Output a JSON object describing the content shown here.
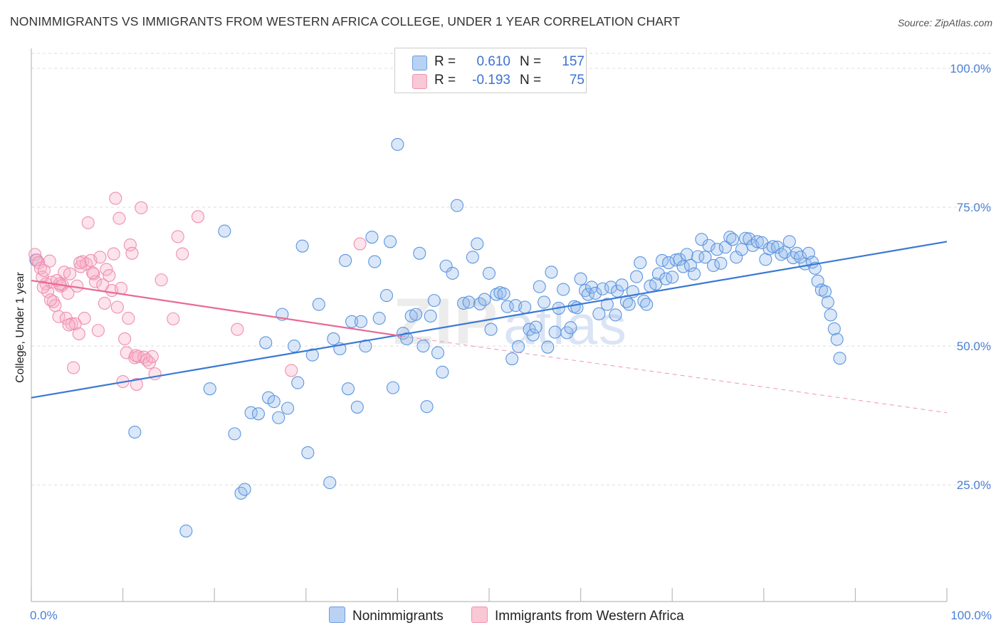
{
  "header": {
    "title": "NONIMMIGRANTS VS IMMIGRANTS FROM WESTERN AFRICA COLLEGE, UNDER 1 YEAR CORRELATION CHART",
    "source": "Source: ZipAtlas.com"
  },
  "watermark": {
    "zip": "ZIP",
    "atlas": "atlas"
  },
  "legend": {
    "r_label": "R =",
    "n_label": "N =",
    "series": [
      {
        "name": "Nonimmigrants",
        "r": "0.610",
        "n": "157",
        "color": "#5b95e0"
      },
      {
        "name": "Immigrants from Western Africa",
        "r": "-0.193",
        "n": "75",
        "color": "#ef8fae"
      }
    ]
  },
  "chart_data": {
    "type": "scatter",
    "title": "NONIMMIGRANTS VS IMMIGRANTS FROM WESTERN AFRICA COLLEGE, UNDER 1 YEAR CORRELATION CHART",
    "xlabel": "",
    "ylabel": "College, Under 1 year",
    "xlim": [
      0,
      100
    ],
    "ylim": [
      4,
      100
    ],
    "x_tick_labels": [
      "0.0%",
      "100.0%"
    ],
    "y_ticks": [
      25,
      50,
      75,
      100
    ],
    "y_tick_labels": [
      "25.0%",
      "50.0%",
      "75.0%",
      "100.0%"
    ],
    "grid": true,
    "colors": {
      "blue": "#5b95e0",
      "blue_line": "#3a78d4",
      "pink": "#ef8fae",
      "pink_line": "#e86a95"
    },
    "series": [
      {
        "name": "Nonimmigrants",
        "trend": {
          "x": [
            0,
            100
          ],
          "y": [
            40.7,
            68.8
          ],
          "style": "solid"
        },
        "points": [
          [
            0.5,
            65.5
          ],
          [
            11.3,
            34.5
          ],
          [
            16.9,
            16.7
          ],
          [
            19.5,
            42.3
          ],
          [
            21.1,
            70.7
          ],
          [
            22.2,
            34.2
          ],
          [
            22.9,
            23.5
          ],
          [
            23.3,
            24.2
          ],
          [
            24.0,
            38.0
          ],
          [
            24.8,
            37.8
          ],
          [
            25.6,
            50.6
          ],
          [
            25.9,
            40.7
          ],
          [
            26.5,
            40.0
          ],
          [
            27.0,
            37.1
          ],
          [
            27.4,
            55.7
          ],
          [
            28.0,
            38.8
          ],
          [
            28.7,
            50.0
          ],
          [
            29.1,
            43.4
          ],
          [
            29.6,
            68.0
          ],
          [
            30.2,
            30.8
          ],
          [
            30.7,
            48.4
          ],
          [
            31.4,
            57.5
          ],
          [
            32.6,
            25.4
          ],
          [
            33.0,
            51.3
          ],
          [
            33.7,
            49.5
          ],
          [
            34.3,
            65.4
          ],
          [
            34.6,
            42.3
          ],
          [
            35.0,
            54.4
          ],
          [
            35.6,
            39.0
          ],
          [
            36.0,
            54.4
          ],
          [
            36.5,
            50.0
          ],
          [
            37.2,
            69.6
          ],
          [
            37.5,
            65.2
          ],
          [
            38.0,
            55.0
          ],
          [
            38.8,
            59.1
          ],
          [
            39.2,
            68.8
          ],
          [
            39.5,
            42.5
          ],
          [
            40.0,
            86.3
          ],
          [
            40.6,
            52.3
          ],
          [
            41.0,
            51.3
          ],
          [
            41.5,
            55.4
          ],
          [
            42.0,
            55.7
          ],
          [
            42.4,
            66.7
          ],
          [
            42.8,
            50.0
          ],
          [
            43.2,
            39.1
          ],
          [
            43.6,
            55.4
          ],
          [
            44.0,
            58.2
          ],
          [
            44.4,
            48.8
          ],
          [
            44.9,
            45.3
          ],
          [
            45.3,
            64.4
          ],
          [
            46.0,
            63.1
          ],
          [
            46.5,
            75.3
          ],
          [
            47.2,
            57.7
          ],
          [
            47.8,
            57.9
          ],
          [
            48.2,
            66.0
          ],
          [
            48.7,
            68.4
          ],
          [
            49.0,
            57.6
          ],
          [
            49.5,
            58.4
          ],
          [
            50.0,
            63.1
          ],
          [
            50.2,
            53.0
          ],
          [
            50.8,
            59.3
          ],
          [
            51.2,
            59.6
          ],
          [
            51.6,
            59.4
          ],
          [
            52.0,
            57.1
          ],
          [
            52.5,
            47.7
          ],
          [
            52.9,
            57.3
          ],
          [
            53.2,
            49.9
          ],
          [
            53.9,
            57.0
          ],
          [
            54.4,
            53.0
          ],
          [
            54.8,
            52.0
          ],
          [
            55.1,
            53.4
          ],
          [
            55.5,
            60.7
          ],
          [
            56.0,
            57.9
          ],
          [
            56.4,
            49.8
          ],
          [
            56.8,
            63.3
          ],
          [
            57.2,
            52.5
          ],
          [
            57.6,
            56.8
          ],
          [
            58.1,
            60.2
          ],
          [
            58.5,
            52.4
          ],
          [
            58.9,
            53.3
          ],
          [
            59.3,
            57.1
          ],
          [
            59.6,
            56.9
          ],
          [
            60.0,
            62.1
          ],
          [
            60.5,
            60.0
          ],
          [
            60.8,
            59.3
          ],
          [
            61.2,
            60.6
          ],
          [
            61.6,
            59.5
          ],
          [
            62.0,
            55.8
          ],
          [
            62.4,
            60.3
          ],
          [
            62.9,
            57.5
          ],
          [
            63.3,
            60.6
          ],
          [
            63.8,
            55.6
          ],
          [
            64.0,
            59.9
          ],
          [
            64.5,
            61.0
          ],
          [
            65.0,
            58.0
          ],
          [
            65.3,
            57.5
          ],
          [
            65.7,
            59.8
          ],
          [
            66.1,
            62.5
          ],
          [
            66.5,
            65.0
          ],
          [
            66.9,
            58.1
          ],
          [
            67.2,
            57.5
          ],
          [
            67.6,
            60.8
          ],
          [
            68.2,
            61.2
          ],
          [
            68.5,
            63.0
          ],
          [
            68.9,
            65.4
          ],
          [
            69.3,
            62.1
          ],
          [
            69.6,
            65.0
          ],
          [
            70.0,
            62.4
          ],
          [
            70.4,
            65.5
          ],
          [
            70.8,
            65.6
          ],
          [
            71.2,
            64.3
          ],
          [
            71.6,
            66.5
          ],
          [
            72.0,
            64.5
          ],
          [
            72.4,
            63.0
          ],
          [
            72.8,
            66.1
          ],
          [
            73.2,
            69.2
          ],
          [
            73.6,
            66.0
          ],
          [
            74.0,
            68.1
          ],
          [
            74.5,
            64.5
          ],
          [
            74.9,
            67.4
          ],
          [
            75.3,
            64.9
          ],
          [
            75.8,
            67.8
          ],
          [
            76.3,
            69.6
          ],
          [
            76.6,
            69.2
          ],
          [
            77.0,
            66.0
          ],
          [
            77.6,
            67.4
          ],
          [
            78.0,
            69.4
          ],
          [
            78.4,
            69.3
          ],
          [
            78.8,
            68.1
          ],
          [
            79.3,
            68.8
          ],
          [
            79.8,
            68.6
          ],
          [
            80.2,
            65.6
          ],
          [
            80.6,
            67.5
          ],
          [
            81.0,
            67.9
          ],
          [
            81.5,
            67.8
          ],
          [
            81.9,
            66.5
          ],
          [
            82.3,
            66.9
          ],
          [
            82.8,
            68.8
          ],
          [
            83.2,
            65.9
          ],
          [
            83.6,
            66.7
          ],
          [
            84.0,
            66.0
          ],
          [
            84.5,
            64.8
          ],
          [
            84.9,
            66.7
          ],
          [
            85.3,
            65.1
          ],
          [
            85.6,
            64.0
          ],
          [
            85.9,
            61.7
          ],
          [
            86.3,
            60.1
          ],
          [
            86.7,
            59.8
          ],
          [
            87.0,
            57.9
          ],
          [
            87.3,
            55.6
          ],
          [
            87.7,
            53.1
          ],
          [
            88.0,
            51.2
          ],
          [
            88.3,
            47.8
          ]
        ]
      },
      {
        "name": "Immigrants from Western Africa",
        "trend": {
          "x": [
            0,
            40.4
          ],
          "y": [
            61.8,
            51.8
          ],
          "style": "solid",
          "dashed_to": {
            "x": 100,
            "y": 38.0
          }
        },
        "points": [
          [
            0.4,
            66.5
          ],
          [
            0.6,
            65.5
          ],
          [
            0.8,
            65.0
          ],
          [
            1.0,
            64.0
          ],
          [
            1.2,
            62.4
          ],
          [
            1.4,
            63.6
          ],
          [
            1.6,
            61.2
          ],
          [
            1.8,
            59.8
          ],
          [
            2.0,
            65.3
          ],
          [
            2.2,
            61.5
          ],
          [
            2.4,
            58.0
          ],
          [
            2.6,
            57.3
          ],
          [
            2.8,
            61.8
          ],
          [
            3.0,
            55.3
          ],
          [
            3.2,
            60.8
          ],
          [
            3.4,
            61.0
          ],
          [
            3.6,
            63.3
          ],
          [
            3.8,
            55.0
          ],
          [
            4.0,
            59.5
          ],
          [
            4.2,
            63.0
          ],
          [
            4.4,
            54.0
          ],
          [
            4.6,
            46.1
          ],
          [
            4.8,
            54.0
          ],
          [
            5.0,
            60.8
          ],
          [
            5.2,
            52.2
          ],
          [
            5.4,
            64.3
          ],
          [
            5.6,
            65.2
          ],
          [
            5.8,
            55.0
          ],
          [
            6.0,
            64.8
          ],
          [
            6.2,
            72.2
          ],
          [
            6.5,
            65.4
          ],
          [
            6.8,
            63.0
          ],
          [
            7.0,
            61.6
          ],
          [
            7.3,
            52.8
          ],
          [
            7.5,
            66.0
          ],
          [
            7.8,
            61.0
          ],
          [
            8.0,
            57.7
          ],
          [
            8.2,
            63.8
          ],
          [
            8.5,
            62.7
          ],
          [
            8.8,
            60.0
          ],
          [
            9.0,
            66.6
          ],
          [
            9.2,
            76.6
          ],
          [
            9.4,
            57.0
          ],
          [
            9.6,
            73.0
          ],
          [
            9.8,
            60.4
          ],
          [
            10.0,
            43.6
          ],
          [
            10.2,
            51.3
          ],
          [
            10.4,
            48.8
          ],
          [
            10.6,
            55.0
          ],
          [
            10.8,
            68.2
          ],
          [
            11.0,
            66.7
          ],
          [
            11.3,
            47.9
          ],
          [
            11.5,
            43.1
          ],
          [
            11.7,
            48.1
          ],
          [
            12.0,
            74.9
          ],
          [
            12.3,
            48.0
          ],
          [
            12.6,
            47.5
          ],
          [
            12.9,
            47.0
          ],
          [
            13.2,
            48.1
          ],
          [
            13.5,
            45.0
          ],
          [
            14.2,
            61.9
          ],
          [
            15.5,
            54.9
          ],
          [
            16.0,
            69.7
          ],
          [
            16.5,
            66.6
          ],
          [
            18.2,
            73.3
          ],
          [
            22.5,
            53.0
          ],
          [
            28.4,
            45.6
          ],
          [
            35.9,
            68.4
          ],
          [
            1.3,
            60.6
          ],
          [
            2.1,
            58.3
          ],
          [
            3.1,
            61.2
          ],
          [
            4.1,
            53.8
          ],
          [
            5.3,
            65.0
          ],
          [
            6.7,
            63.2
          ],
          [
            11.4,
            48.3
          ]
        ]
      }
    ]
  }
}
